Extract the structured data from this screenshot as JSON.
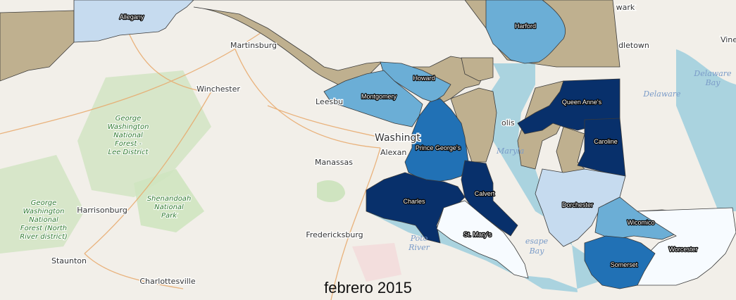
{
  "caption": "febrero 2015",
  "colors": {
    "no_data": "#bfb08f",
    "very_light": "#f7fbff",
    "light": "#c6dbef",
    "medium_light": "#6baed6",
    "medium": "#2171b5",
    "dark": "#08306b"
  },
  "counties": [
    {
      "id": "allegany",
      "name": "Allegany",
      "color": "#c6dbef"
    },
    {
      "id": "harford",
      "name": "Harford",
      "color": "#6baed6"
    },
    {
      "id": "howard",
      "name": "Howard",
      "color": "#6baed6"
    },
    {
      "id": "montgomery",
      "name": "Montgomery",
      "color": "#6baed6"
    },
    {
      "id": "prince-georges",
      "name": "Prince George's",
      "color": "#2171b5"
    },
    {
      "id": "queen-annes",
      "name": "Queen Anne's",
      "color": "#08306b"
    },
    {
      "id": "caroline",
      "name": "Caroline",
      "color": "#08306b"
    },
    {
      "id": "calvert",
      "name": "Calvert",
      "color": "#08306b"
    },
    {
      "id": "charles",
      "name": "Charles",
      "color": "#08306b"
    },
    {
      "id": "st-marys",
      "name": "St. Mary's",
      "color": "#f7fbff"
    },
    {
      "id": "dorchester",
      "name": "Dorchester",
      "color": "#c6dbef"
    },
    {
      "id": "wicomico",
      "name": "Wicomico",
      "color": "#6baed6"
    },
    {
      "id": "worcester",
      "name": "Worcester",
      "color": "#f7fbff"
    },
    {
      "id": "somerset",
      "name": "Somerset",
      "color": "#2171b5"
    }
  ],
  "basemap_labels": {
    "martinsburg": "Martinsburg",
    "winchester": "Winchester",
    "leesburg": "Leesbu",
    "washington": "Washingt",
    "alexandria": "Alexan",
    "manassas": "Manassas",
    "harrisonburg": "Harrisonburg",
    "fredericksburg": "Fredericksburg",
    "staunton": "Staunton",
    "charlottesville": "Charlottesville",
    "gw_forest_lee": [
      "George",
      "Washington",
      "National",
      "Forest -",
      "Lee District"
    ],
    "gw_forest_north": [
      "George",
      "Washington",
      "National",
      "Forest (North",
      "River district)"
    ],
    "shenandoah": [
      "Shenandoah",
      "National",
      "Park"
    ],
    "delaware": "Delaware",
    "delaware_bay": [
      "Delaware",
      "Bay"
    ],
    "middletown": "dletown",
    "newark": "wark",
    "vine": "Vine",
    "maryland": "Maryla",
    "chesapeake_bay": [
      "esape",
      "Bay"
    ],
    "potomac": [
      "Poto",
      "River"
    ],
    "annapolis": "olis"
  }
}
